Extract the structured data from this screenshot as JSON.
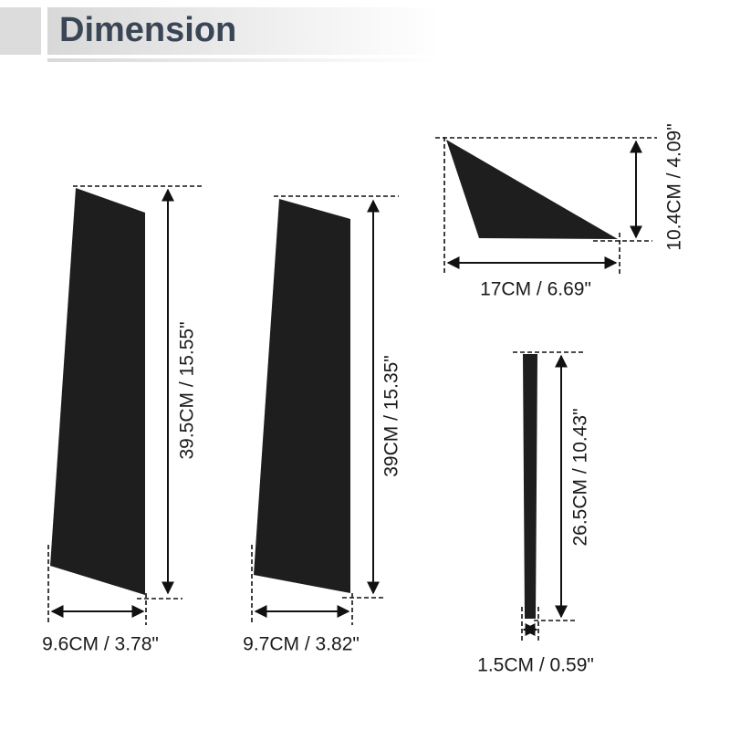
{
  "header": {
    "title": "Dimension"
  },
  "parts": [
    {
      "width": "9.6CM / 3.78\"",
      "height": "39.5CM / 15.55\""
    },
    {
      "width": "9.7CM / 3.82\"",
      "height": "39CM / 15.35\""
    },
    {
      "width": "17CM / 6.69\"",
      "height": "10.4CM / 4.09\""
    },
    {
      "width": "1.5CM / 0.59\"",
      "height": "26.5CM / 10.43\""
    }
  ]
}
